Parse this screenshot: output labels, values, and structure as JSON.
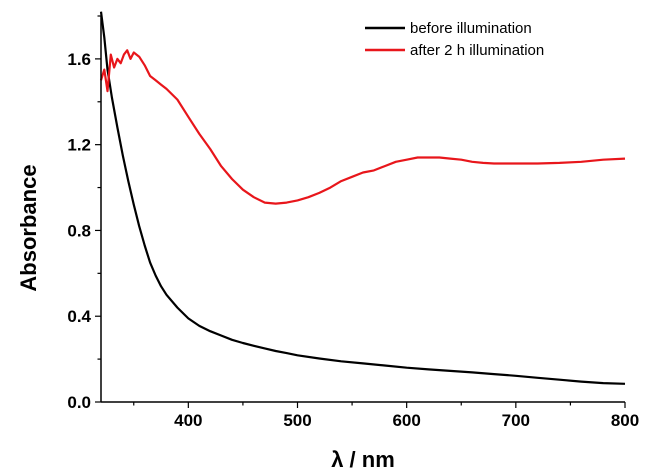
{
  "chart_data": {
    "type": "line",
    "title": "",
    "xlabel": "λ / nm",
    "ylabel": "Absorbance",
    "xlim": [
      320,
      800
    ],
    "ylim": [
      0.0,
      1.8
    ],
    "xticks": [
      400,
      500,
      600,
      700,
      800
    ],
    "xtick_labels": [
      "400",
      "500",
      "600",
      "700",
      "800"
    ],
    "yticks": [
      0.0,
      0.4,
      0.8,
      1.2,
      1.6
    ],
    "ytick_labels": [
      "0.0",
      "0.4",
      "0.8",
      "1.2",
      "1.6"
    ],
    "grid": false,
    "legend_position": "top-right",
    "series": [
      {
        "name": "before illumination",
        "color": "#000000",
        "x": [
          320,
          323,
          326,
          330,
          335,
          340,
          345,
          350,
          355,
          360,
          365,
          370,
          375,
          380,
          390,
          400,
          410,
          420,
          430,
          440,
          450,
          460,
          470,
          480,
          490,
          500,
          520,
          540,
          560,
          580,
          600,
          620,
          640,
          660,
          680,
          700,
          720,
          740,
          760,
          780,
          800
        ],
        "y": [
          1.82,
          1.7,
          1.55,
          1.42,
          1.28,
          1.15,
          1.03,
          0.92,
          0.82,
          0.73,
          0.65,
          0.59,
          0.54,
          0.5,
          0.44,
          0.39,
          0.355,
          0.33,
          0.31,
          0.29,
          0.275,
          0.262,
          0.25,
          0.238,
          0.228,
          0.218,
          0.203,
          0.19,
          0.18,
          0.17,
          0.16,
          0.152,
          0.145,
          0.138,
          0.13,
          0.122,
          0.113,
          0.104,
          0.095,
          0.088,
          0.085
        ]
      },
      {
        "name": "after 2 h illumination",
        "color": "#e8161b",
        "x": [
          320,
          323,
          326,
          329,
          332,
          335,
          338,
          341,
          344,
          347,
          350,
          355,
          360,
          365,
          370,
          375,
          380,
          390,
          400,
          410,
          420,
          430,
          440,
          450,
          460,
          470,
          480,
          490,
          500,
          510,
          520,
          530,
          540,
          550,
          560,
          570,
          580,
          590,
          600,
          610,
          620,
          630,
          640,
          650,
          660,
          670,
          680,
          690,
          700,
          720,
          740,
          760,
          780,
          800
        ],
        "y": [
          1.5,
          1.55,
          1.45,
          1.62,
          1.56,
          1.6,
          1.58,
          1.62,
          1.64,
          1.6,
          1.63,
          1.61,
          1.57,
          1.52,
          1.5,
          1.48,
          1.46,
          1.41,
          1.33,
          1.25,
          1.18,
          1.1,
          1.04,
          0.99,
          0.955,
          0.93,
          0.925,
          0.93,
          0.94,
          0.955,
          0.975,
          1.0,
          1.03,
          1.05,
          1.07,
          1.08,
          1.1,
          1.12,
          1.13,
          1.14,
          1.14,
          1.14,
          1.135,
          1.13,
          1.12,
          1.115,
          1.112,
          1.112,
          1.112,
          1.112,
          1.115,
          1.12,
          1.13,
          1.135
        ]
      }
    ]
  }
}
